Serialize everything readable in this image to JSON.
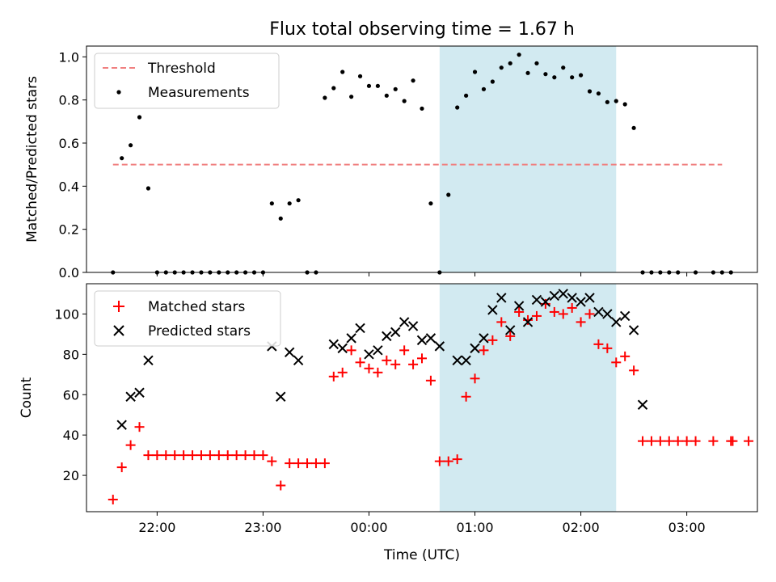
{
  "title": "Flux total observing time = 1.67 h",
  "colors": {
    "threshold": "#f08080",
    "measurements": "#000000",
    "matched": "#ff0000",
    "predicted": "#000000",
    "span": "#add8e6"
  },
  "chart_data": [
    {
      "type": "scatter",
      "ylabel": "Matched/Predicted stars",
      "xlim": [
        "21:20",
        "03:40"
      ],
      "ylim": [
        0,
        1.05
      ],
      "yticks": [
        "0.0",
        "0.2",
        "0.4",
        "0.6",
        "0.8",
        "1.0"
      ],
      "legend": {
        "position": "top-left",
        "entries": [
          "Threshold",
          "Measurements"
        ]
      },
      "shaded_span": [
        "00:40",
        "02:20"
      ],
      "threshold": {
        "name": "Threshold",
        "y": 0.5,
        "x": [
          "21:35",
          "03:20"
        ]
      },
      "series": [
        {
          "name": "Measurements",
          "points": [
            [
              "21:35",
              0.0
            ],
            [
              "21:40",
              0.53
            ],
            [
              "21:45",
              0.59
            ],
            [
              "21:50",
              0.72
            ],
            [
              "21:55",
              0.39
            ],
            [
              "22:00",
              0.0
            ],
            [
              "22:05",
              0.0
            ],
            [
              "22:10",
              0.0
            ],
            [
              "22:15",
              0.0
            ],
            [
              "22:20",
              0.0
            ],
            [
              "22:25",
              0.0
            ],
            [
              "22:30",
              0.0
            ],
            [
              "22:35",
              0.0
            ],
            [
              "22:40",
              0.0
            ],
            [
              "22:45",
              0.0
            ],
            [
              "22:50",
              0.0
            ],
            [
              "22:55",
              0.0
            ],
            [
              "23:00",
              0.0
            ],
            [
              "23:05",
              0.32
            ],
            [
              "23:10",
              0.25
            ],
            [
              "23:15",
              0.32
            ],
            [
              "23:20",
              0.335
            ],
            [
              "23:25",
              0.0
            ],
            [
              "23:30",
              0.0
            ],
            [
              "23:35",
              0.81
            ],
            [
              "23:40",
              0.855
            ],
            [
              "23:45",
              0.93
            ],
            [
              "23:50",
              0.815
            ],
            [
              "23:55",
              0.91
            ],
            [
              "00:00",
              0.865
            ],
            [
              "00:05",
              0.865
            ],
            [
              "00:10",
              0.82
            ],
            [
              "00:15",
              0.85
            ],
            [
              "00:20",
              0.795
            ],
            [
              "00:25",
              0.89
            ],
            [
              "00:30",
              0.76
            ],
            [
              "00:35",
              0.32
            ],
            [
              "00:40",
              0.0
            ],
            [
              "00:45",
              0.36
            ],
            [
              "00:50",
              0.765
            ],
            [
              "00:55",
              0.82
            ],
            [
              "01:00",
              0.93
            ],
            [
              "01:05",
              0.85
            ],
            [
              "01:10",
              0.885
            ],
            [
              "01:15",
              0.95
            ],
            [
              "01:20",
              0.97
            ],
            [
              "01:25",
              1.01
            ],
            [
              "01:30",
              0.925
            ],
            [
              "01:35",
              0.97
            ],
            [
              "01:40",
              0.92
            ],
            [
              "01:45",
              0.905
            ],
            [
              "01:50",
              0.95
            ],
            [
              "01:55",
              0.905
            ],
            [
              "02:00",
              0.915
            ],
            [
              "02:05",
              0.84
            ],
            [
              "02:10",
              0.83
            ],
            [
              "02:15",
              0.79
            ],
            [
              "02:20",
              0.795
            ],
            [
              "02:25",
              0.78
            ],
            [
              "02:30",
              0.67
            ],
            [
              "02:35",
              0.0
            ],
            [
              "02:40",
              0.0
            ],
            [
              "02:45",
              0.0
            ],
            [
              "02:50",
              0.0
            ],
            [
              "02:55",
              0.0
            ],
            [
              "03:05",
              0.0
            ],
            [
              "03:15",
              0.0
            ],
            [
              "03:20",
              0.0
            ],
            [
              "03:25",
              0.0
            ]
          ]
        }
      ]
    },
    {
      "type": "scatter",
      "ylabel": "Count",
      "xlabel": "Time (UTC)",
      "xlim": [
        "21:20",
        "03:40"
      ],
      "ylim": [
        2,
        115
      ],
      "yticks": [
        "20",
        "40",
        "60",
        "80",
        "100"
      ],
      "xticks": [
        "22:00",
        "23:00",
        "00:00",
        "01:00",
        "02:00",
        "03:00"
      ],
      "legend": {
        "position": "top-left",
        "entries": [
          "Matched stars",
          "Predicted stars"
        ]
      },
      "shaded_span": [
        "00:40",
        "02:20"
      ],
      "series": [
        {
          "name": "Matched stars",
          "marker": "+",
          "points": [
            [
              "21:35",
              8
            ],
            [
              "21:40",
              24
            ],
            [
              "21:45",
              35
            ],
            [
              "21:50",
              44
            ],
            [
              "21:55",
              30
            ],
            [
              "22:00",
              30
            ],
            [
              "22:05",
              30
            ],
            [
              "22:10",
              30
            ],
            [
              "22:15",
              30
            ],
            [
              "22:20",
              30
            ],
            [
              "22:25",
              30
            ],
            [
              "22:30",
              30
            ],
            [
              "22:35",
              30
            ],
            [
              "22:40",
              30
            ],
            [
              "22:45",
              30
            ],
            [
              "22:50",
              30
            ],
            [
              "22:55",
              30
            ],
            [
              "23:00",
              30
            ],
            [
              "23:05",
              27
            ],
            [
              "23:10",
              15
            ],
            [
              "23:15",
              26
            ],
            [
              "23:20",
              26
            ],
            [
              "23:25",
              26
            ],
            [
              "23:30",
              26
            ],
            [
              "23:35",
              26
            ],
            [
              "23:40",
              69
            ],
            [
              "23:45",
              71
            ],
            [
              "23:50",
              82
            ],
            [
              "23:55",
              76
            ],
            [
              "00:00",
              73
            ],
            [
              "00:05",
              71
            ],
            [
              "00:10",
              77
            ],
            [
              "00:15",
              75
            ],
            [
              "00:20",
              82
            ],
            [
              "00:25",
              75
            ],
            [
              "00:30",
              78
            ],
            [
              "00:35",
              67
            ],
            [
              "00:40",
              27
            ],
            [
              "00:45",
              27
            ],
            [
              "00:50",
              28
            ],
            [
              "00:55",
              59
            ],
            [
              "01:00",
              68
            ],
            [
              "01:05",
              82
            ],
            [
              "01:10",
              87
            ],
            [
              "01:15",
              96
            ],
            [
              "01:20",
              89
            ],
            [
              "01:25",
              101
            ],
            [
              "01:30",
              97
            ],
            [
              "01:35",
              99
            ],
            [
              "01:40",
              105
            ],
            [
              "01:45",
              101
            ],
            [
              "01:50",
              100
            ],
            [
              "01:55",
              103
            ],
            [
              "02:00",
              96
            ],
            [
              "02:05",
              100
            ],
            [
              "02:10",
              85
            ],
            [
              "02:15",
              83
            ],
            [
              "02:20",
              76
            ],
            [
              "02:25",
              79
            ],
            [
              "02:30",
              72
            ],
            [
              "02:35",
              37
            ],
            [
              "02:40",
              37
            ],
            [
              "02:45",
              37
            ],
            [
              "02:50",
              37
            ],
            [
              "02:55",
              37
            ],
            [
              "03:00",
              37
            ],
            [
              "03:05",
              37
            ],
            [
              "03:15",
              37
            ],
            [
              "03:25",
              37
            ],
            [
              "03:26",
              37
            ],
            [
              "03:35",
              37
            ]
          ]
        },
        {
          "name": "Predicted stars",
          "marker": "x",
          "points": [
            [
              "21:40",
              45
            ],
            [
              "21:45",
              59
            ],
            [
              "21:50",
              61
            ],
            [
              "21:55",
              77
            ],
            [
              "23:05",
              84
            ],
            [
              "23:10",
              59
            ],
            [
              "23:15",
              81
            ],
            [
              "23:20",
              77
            ],
            [
              "23:40",
              85
            ],
            [
              "23:45",
              83
            ],
            [
              "23:50",
              88
            ],
            [
              "23:55",
              93
            ],
            [
              "00:00",
              80
            ],
            [
              "00:05",
              82
            ],
            [
              "00:10",
              89
            ],
            [
              "00:15",
              91
            ],
            [
              "00:20",
              96
            ],
            [
              "00:25",
              94
            ],
            [
              "00:30",
              87
            ],
            [
              "00:35",
              88
            ],
            [
              "00:40",
              84
            ],
            [
              "00:50",
              77
            ],
            [
              "00:55",
              77
            ],
            [
              "01:00",
              83
            ],
            [
              "01:05",
              88
            ],
            [
              "01:10",
              102
            ],
            [
              "01:15",
              108
            ],
            [
              "01:20",
              92
            ],
            [
              "01:25",
              104
            ],
            [
              "01:30",
              96
            ],
            [
              "01:35",
              107
            ],
            [
              "01:40",
              106
            ],
            [
              "01:45",
              109
            ],
            [
              "01:50",
              110
            ],
            [
              "01:55",
              108
            ],
            [
              "02:00",
              106
            ],
            [
              "02:05",
              108
            ],
            [
              "02:10",
              101
            ],
            [
              "02:15",
              100
            ],
            [
              "02:20",
              96
            ],
            [
              "02:25",
              99
            ],
            [
              "02:30",
              92
            ],
            [
              "02:35",
              55
            ]
          ]
        }
      ]
    }
  ]
}
